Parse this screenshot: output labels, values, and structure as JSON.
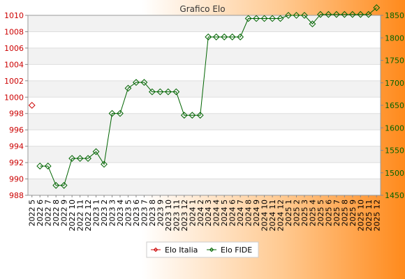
{
  "chart_data": {
    "type": "line",
    "title": "Grafico Elo",
    "categories": [
      "2022 5",
      "2022 6",
      "2022 7",
      "2022 8",
      "2022 9",
      "2022 10",
      "2022 11",
      "2022 12",
      "2023 1",
      "2023 2",
      "2023 3",
      "2023 4",
      "2023 5",
      "2023 6",
      "2023 7",
      "2023 8",
      "2023 9",
      "2023 10",
      "2023 11",
      "2023 12",
      "2024 1",
      "2024 2",
      "2024 3",
      "2024 4",
      "2024 5",
      "2024 6",
      "2024 7",
      "2024 8",
      "2024 9",
      "2024 10",
      "2024 11",
      "2024 12",
      "2025 1",
      "2025 2",
      "2025 3",
      "2025 4",
      "2025 5",
      "2025 6",
      "2025 7",
      "2025 8",
      "2025 9",
      "2025 10",
      "2025 11",
      "2025 12"
    ],
    "y_left": {
      "min": 988,
      "max": 1010,
      "ticks": [
        988,
        990,
        992,
        994,
        996,
        998,
        1000,
        1002,
        1004,
        1006,
        1008,
        1010
      ]
    },
    "y_right": {
      "min": 1450,
      "max": 1850,
      "ticks": [
        1450,
        1500,
        1550,
        1600,
        1650,
        1700,
        1750,
        1800,
        1850
      ]
    },
    "grid": true,
    "legend_position": "bottom",
    "series": [
      {
        "name": "Elo Italia",
        "axis": "left",
        "color": "#cc0000",
        "values": [
          999,
          null,
          null,
          null,
          null,
          null,
          null,
          null,
          null,
          null,
          null,
          null,
          null,
          null,
          null,
          null,
          null,
          null,
          null,
          null,
          null,
          null,
          null,
          null,
          null,
          null,
          null,
          null,
          null,
          null,
          null,
          null,
          null,
          null,
          null,
          null,
          null,
          null,
          null,
          null,
          null,
          null,
          null,
          null
        ]
      },
      {
        "name": "Elo FIDE",
        "axis": "right",
        "color": "#006400",
        "values": [
          null,
          1515,
          1515,
          1472,
          1472,
          1532,
          1532,
          1532,
          1547,
          1519,
          1632,
          1632,
          1688,
          1701,
          1701,
          1680,
          1680,
          1680,
          1680,
          1628,
          1628,
          1628,
          1802,
          1802,
          1802,
          1802,
          1802,
          1843,
          1843,
          1843,
          1843,
          1843,
          1850,
          1850,
          1850,
          1831,
          1852,
          1852,
          1852,
          1852,
          1852,
          1852,
          1852,
          1867
        ]
      }
    ]
  }
}
